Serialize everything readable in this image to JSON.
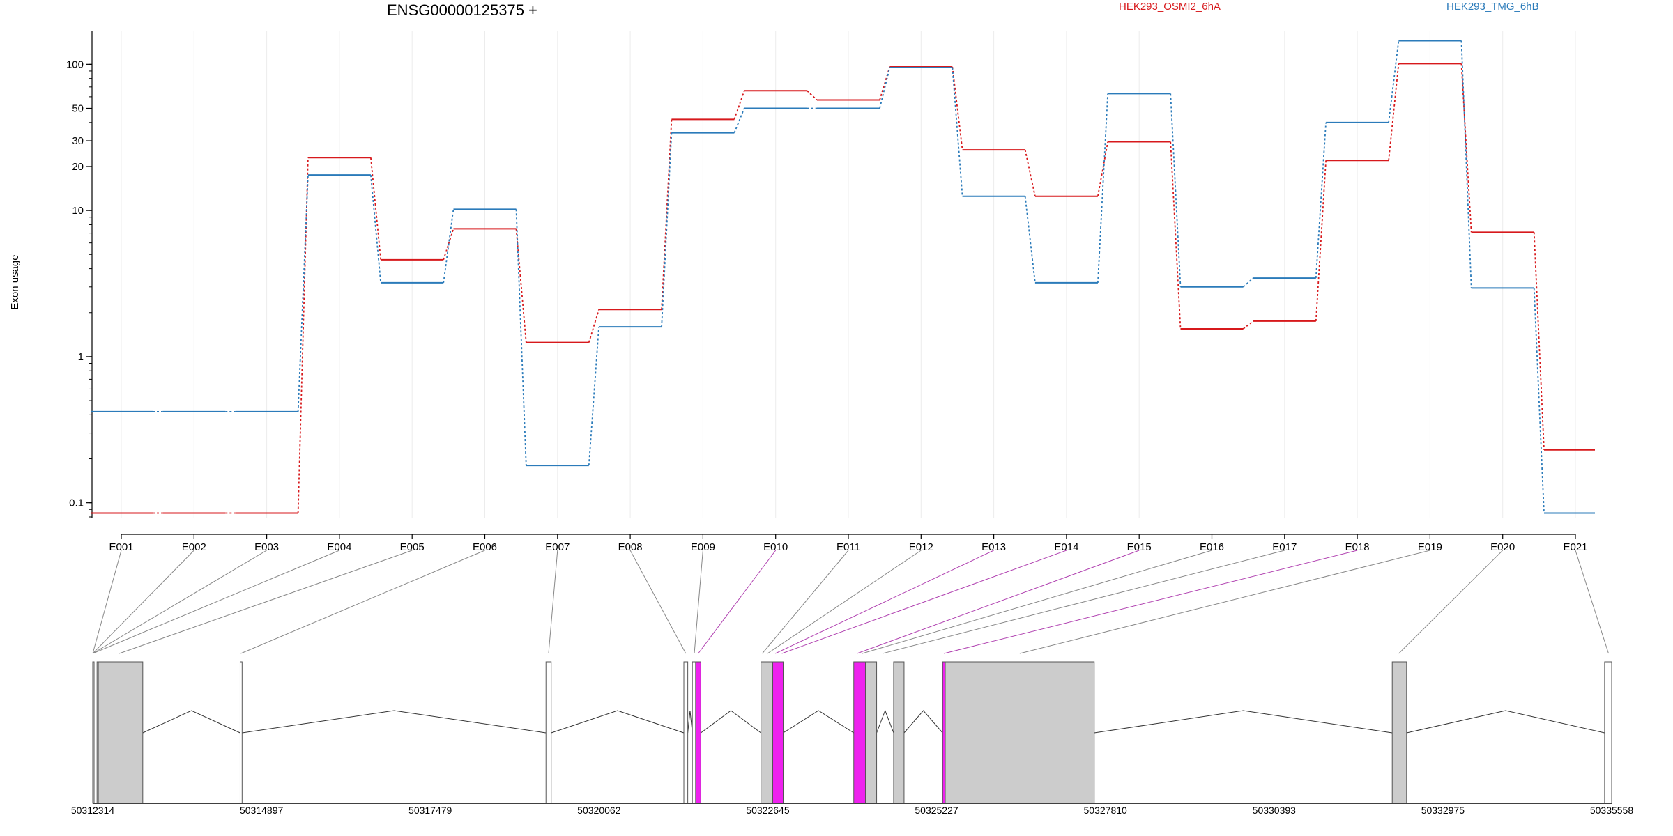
{
  "chart_data": {
    "type": "line",
    "title": "ENSG00000125375 +",
    "ylabel": "Exon usage",
    "y_scale": "log",
    "ylim": [
      0.08,
      170
    ],
    "y_ticks": [
      {
        "value": 0.1,
        "label": "0.1"
      },
      {
        "value": 1,
        "label": "1"
      },
      {
        "value": 10,
        "label": "10"
      },
      {
        "value": 20,
        "label": "20"
      },
      {
        "value": 30,
        "label": "30"
      },
      {
        "value": 50,
        "label": "50"
      },
      {
        "value": 100,
        "label": "100"
      }
    ],
    "categories": [
      "E001",
      "E002",
      "E003",
      "E004",
      "E005",
      "E006",
      "E007",
      "E008",
      "E009",
      "E010",
      "E011",
      "E012",
      "E013",
      "E014",
      "E015",
      "E016",
      "E017",
      "E018",
      "E019",
      "E020",
      "E021"
    ],
    "series": [
      {
        "name": "HEK293_OSMI2_6hA",
        "color": "#d7191c",
        "values": [
          0.085,
          0.085,
          0.085,
          23,
          4.6,
          7.5,
          1.25,
          2.1,
          42,
          66,
          57,
          96,
          26,
          12.5,
          29.5,
          1.55,
          1.75,
          22,
          101,
          7.1,
          0.23
        ]
      },
      {
        "name": "HEK293_TMG_6hB",
        "color": "#2b7bba",
        "values": [
          0.42,
          0.42,
          0.42,
          17.5,
          3.2,
          10.2,
          0.18,
          1.6,
          34,
          50,
          50,
          95,
          12.5,
          3.2,
          63,
          3.0,
          3.45,
          40,
          145,
          2.95,
          0.085
        ]
      }
    ],
    "gene_model": {
      "coordinate_ticks": [
        "50312314",
        "50314897",
        "50317479",
        "50320062",
        "50322645",
        "50325227",
        "50327810",
        "50330393",
        "50332975",
        "50335558"
      ],
      "coordinate_range": [
        50312314,
        50335558
      ],
      "exons": [
        {
          "start": 50312314,
          "end": 50312330,
          "fill": "#cccccc"
        },
        {
          "start": 50312380,
          "end": 50312400,
          "fill": "#cccccc"
        },
        {
          "start": 50312400,
          "end": 50313080,
          "fill": "#cccccc"
        },
        {
          "start": 50314570,
          "end": 50314600,
          "fill": "#ffffff"
        },
        {
          "start": 50319250,
          "end": 50319330,
          "fill": "#ffffff"
        },
        {
          "start": 50321360,
          "end": 50321420,
          "fill": "#ffffff"
        },
        {
          "start": 50321490,
          "end": 50321540,
          "fill": "#ffffff"
        },
        {
          "start": 50321540,
          "end": 50321620,
          "fill": "#ee22ee"
        },
        {
          "start": 50322540,
          "end": 50322720,
          "fill": "#cccccc"
        },
        {
          "start": 50322720,
          "end": 50322880,
          "fill": "#ee22ee"
        },
        {
          "start": 50323960,
          "end": 50324140,
          "fill": "#ee22ee"
        },
        {
          "start": 50324140,
          "end": 50324310,
          "fill": "#cccccc"
        },
        {
          "start": 50324570,
          "end": 50324730,
          "fill": "#cccccc"
        },
        {
          "start": 50325320,
          "end": 50325360,
          "fill": "#ee22ee"
        },
        {
          "start": 50325360,
          "end": 50327640,
          "fill": "#cccccc"
        },
        {
          "start": 50332200,
          "end": 50332420,
          "fill": "#cccccc"
        },
        {
          "start": 50335450,
          "end": 50335558,
          "fill": "#ffffff"
        }
      ],
      "introns": [
        [
          50313080,
          50314570
        ],
        [
          50314600,
          50319250
        ],
        [
          50319330,
          50321360
        ],
        [
          50321420,
          50321490
        ],
        [
          50321620,
          50322540
        ],
        [
          50322880,
          50323960
        ],
        [
          50324310,
          50324570
        ],
        [
          50324730,
          50325320
        ],
        [
          50327640,
          50332200
        ],
        [
          50332420,
          50335450
        ]
      ],
      "exon_links": [
        {
          "to": 50312314,
          "color": "#888888"
        },
        {
          "to": 50312314,
          "color": "#888888"
        },
        {
          "to": 50312314,
          "color": "#888888"
        },
        {
          "to": 50312314,
          "color": "#888888"
        },
        {
          "to": 50312720,
          "color": "#888888"
        },
        {
          "to": 50314580,
          "color": "#888888"
        },
        {
          "to": 50319290,
          "color": "#888888"
        },
        {
          "to": 50321390,
          "color": "#888888"
        },
        {
          "to": 50321520,
          "color": "#888888"
        },
        {
          "to": 50321580,
          "color": "#b040b0"
        },
        {
          "to": 50322560,
          "color": "#888888"
        },
        {
          "to": 50322640,
          "color": "#888888"
        },
        {
          "to": 50322760,
          "color": "#b040b0"
        },
        {
          "to": 50322860,
          "color": "#b040b0"
        },
        {
          "to": 50324010,
          "color": "#b040b0"
        },
        {
          "to": 50324090,
          "color": "#888888"
        },
        {
          "to": 50324400,
          "color": "#888888"
        },
        {
          "to": 50325340,
          "color": "#b040b0"
        },
        {
          "to": 50326500,
          "color": "#888888"
        },
        {
          "to": 50332300,
          "color": "#888888"
        },
        {
          "to": 50335510,
          "color": "#888888"
        }
      ]
    }
  }
}
